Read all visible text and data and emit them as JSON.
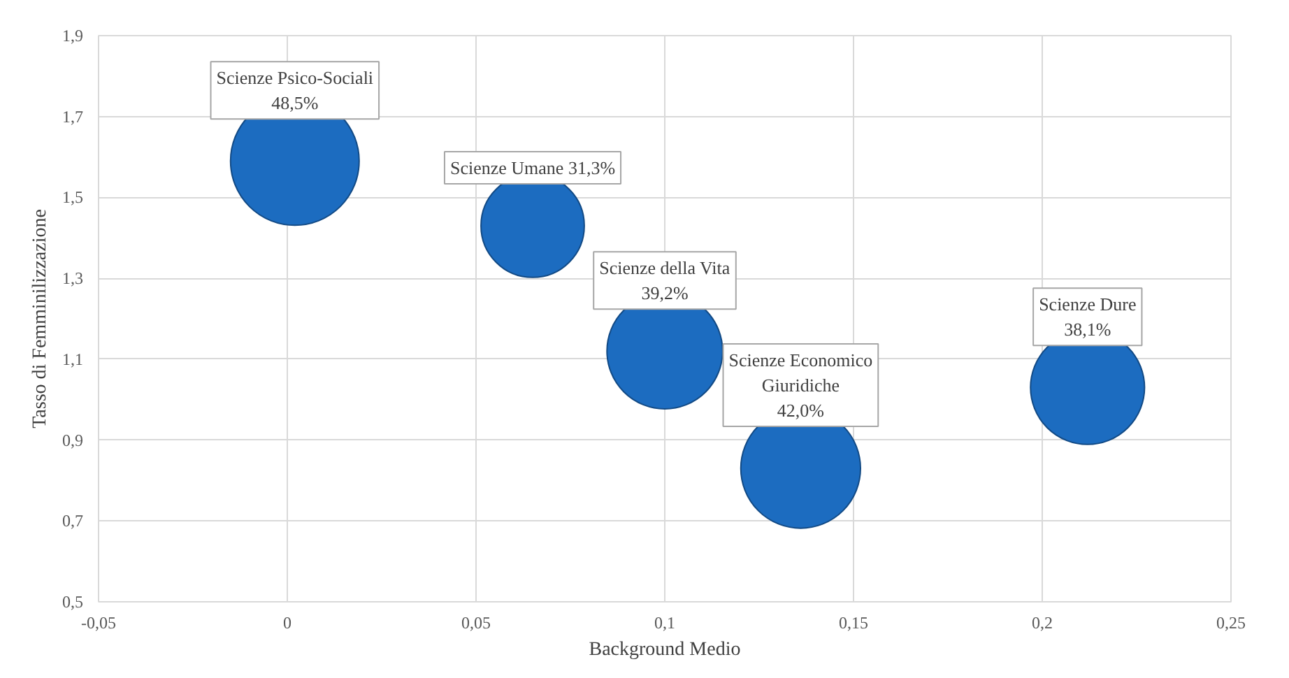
{
  "chart_data": {
    "type": "bubble",
    "xlabel": "Background Medio",
    "ylabel": "Tasso di Femminilizzazione",
    "x": [
      0.002,
      0.065,
      0.1,
      0.136,
      0.212
    ],
    "series": [
      {
        "color": "#1c6cc0",
        "values": [
          1.59,
          1.43,
          1.12,
          0.83,
          1.03
        ],
        "sizes": [
          1,
          0.645,
          0.808,
          0.866,
          0.786
        ]
      }
    ],
    "annotations": [
      {
        "text": "Scienze Psico-Sociali\n48,5%",
        "x": 0.002,
        "y": 1.59
      },
      {
        "text": "Scienze Umane 31,3%",
        "x": 0.065,
        "y": 1.43
      },
      {
        "text": "Scienze della Vita\n39,2%",
        "x": 0.1,
        "y": 1.12
      },
      {
        "text": "Scienze Economico\nGiuridiche\n42,0%",
        "x": 0.136,
        "y": 0.83
      },
      {
        "text": "Scienze Dure\n38,1%",
        "x": 0.212,
        "y": 1.03
      }
    ],
    "xlim": [
      -0.05,
      0.25
    ],
    "xticks": [
      {
        "value": -0.05,
        "label": "-0,05"
      },
      {
        "value": 0,
        "label": "0"
      },
      {
        "value": 0.05,
        "label": "0,05"
      },
      {
        "value": 0.1,
        "label": "0,1"
      },
      {
        "value": 0.15,
        "label": "0,15"
      },
      {
        "value": 0.2,
        "label": "0,2"
      },
      {
        "value": 0.25,
        "label": "0,25"
      }
    ],
    "ylim": [
      0.5,
      1.9
    ],
    "yticks": [
      {
        "value": 0.5,
        "label": "0,5"
      },
      {
        "value": 0.7,
        "label": "0,7"
      },
      {
        "value": 0.9,
        "label": "0,9"
      },
      {
        "value": 1.1,
        "label": "1,1"
      },
      {
        "value": 1.3,
        "label": "1,3"
      },
      {
        "value": 1.5,
        "label": "1,5"
      },
      {
        "value": 1.7,
        "label": "1,7"
      },
      {
        "value": 1.9,
        "label": "1,9"
      }
    ],
    "grid": true
  }
}
